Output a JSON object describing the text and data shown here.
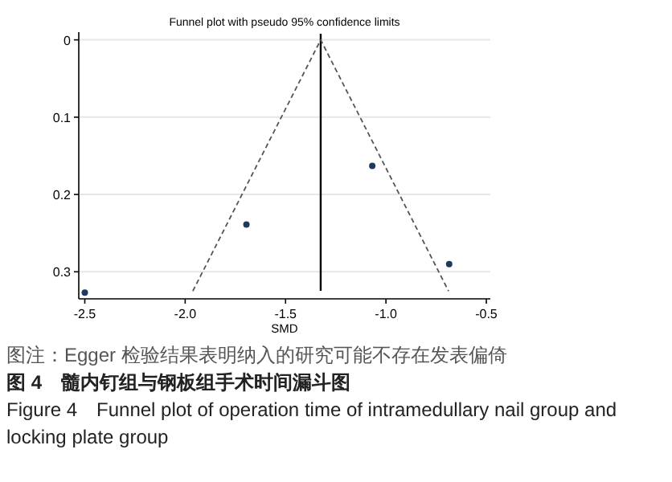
{
  "chart_data": {
    "type": "scatter",
    "title": "Funnel plot with pseudo 95% confidence limits",
    "xlabel": "SMD",
    "x": [
      -2.5,
      -1.695,
      -1.068,
      -0.685
    ],
    "values": [
      0.327,
      0.239,
      0.163,
      0.29
    ],
    "color": "#1f3a5f",
    "marker": "circle",
    "series": [
      {
        "type": "line",
        "color": "#555555",
        "line_style": "dashed",
        "marker": "none",
        "x": [
          -1.962,
          -1.325,
          -0.688
        ],
        "values": [
          0.325,
          0,
          0.325
        ]
      }
    ],
    "ref_lines": [
      {
        "axis": "x",
        "value": -1.325,
        "color": "#000000",
        "line_style": "solid"
      }
    ],
    "xlim": [
      -2.53,
      -0.48
    ],
    "xticks": [
      -2.5,
      {
        "value": -2,
        "label": "-2.0"
      },
      -1.5,
      {
        "value": -1,
        "label": "-1.0"
      },
      -0.5
    ],
    "ylim": [
      0.335,
      -0.01
    ],
    "yticks": [
      0,
      0.1,
      0.2,
      0.3
    ],
    "grid": "y",
    "annotations": [
      "图注：Egger 检验结果表明纳入的研究可能不存在发表偏倚",
      "图 4　髓内钉组与钢板组手术时间漏斗图",
      "Figure 4　Funnel plot of operation time of intramedullary nail group and locking plate group"
    ]
  }
}
